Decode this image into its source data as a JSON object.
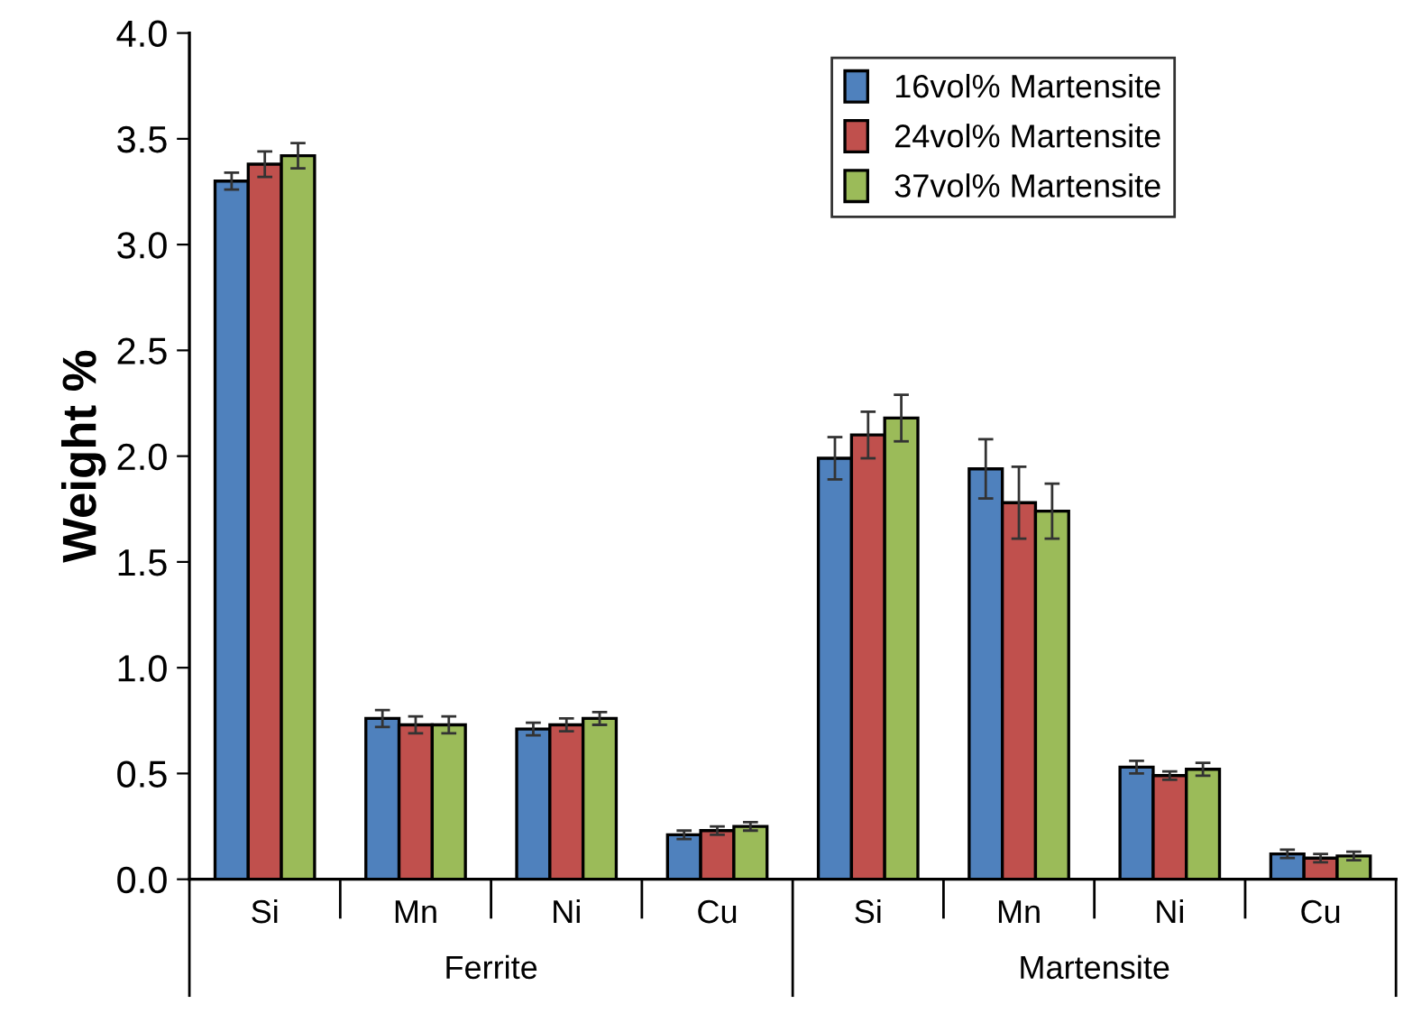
{
  "chart_data": {
    "type": "bar",
    "ylabel": "Weight %",
    "categories": [
      "Si",
      "Mn",
      "Ni",
      "Cu",
      "Si",
      "Mn",
      "Ni",
      "Cu"
    ],
    "series": [
      {
        "name": "16vol% Martensite",
        "color": "#4f81bd",
        "values": [
          3.3,
          0.76,
          0.71,
          0.21,
          1.99,
          1.94,
          0.53,
          0.12
        ],
        "errors": [
          0.04,
          0.04,
          0.03,
          0.02,
          0.1,
          0.14,
          0.03,
          0.02
        ]
      },
      {
        "name": "24vol% Martensite",
        "color": "#c0504d",
        "values": [
          3.38,
          0.73,
          0.73,
          0.23,
          2.1,
          1.78,
          0.49,
          0.1
        ],
        "errors": [
          0.06,
          0.04,
          0.03,
          0.02,
          0.11,
          0.17,
          0.02,
          0.02
        ]
      },
      {
        "name": "37vol% Martensite",
        "color": "#9bbb59",
        "values": [
          3.42,
          0.73,
          0.76,
          0.25,
          2.18,
          1.74,
          0.52,
          0.11
        ],
        "errors": [
          0.06,
          0.04,
          0.03,
          0.02,
          0.11,
          0.13,
          0.03,
          0.02
        ]
      }
    ],
    "annotations": [
      "Ferrite",
      "Martensite"
    ],
    "ylim": [
      0,
      4
    ],
    "yticks": [
      {
        "value": 0,
        "label": "0.0"
      },
      {
        "value": 0.5,
        "label": "0.5"
      },
      {
        "value": 1,
        "label": "1.0"
      },
      {
        "value": 1.5,
        "label": "1.5"
      },
      {
        "value": 2,
        "label": "2.0"
      },
      {
        "value": 2.5,
        "label": "2.5"
      },
      {
        "value": 3,
        "label": "3.0"
      },
      {
        "value": 3.5,
        "label": "3.5"
      },
      {
        "value": 4,
        "label": "4.0"
      }
    ],
    "grid": false,
    "legend": "top right"
  }
}
